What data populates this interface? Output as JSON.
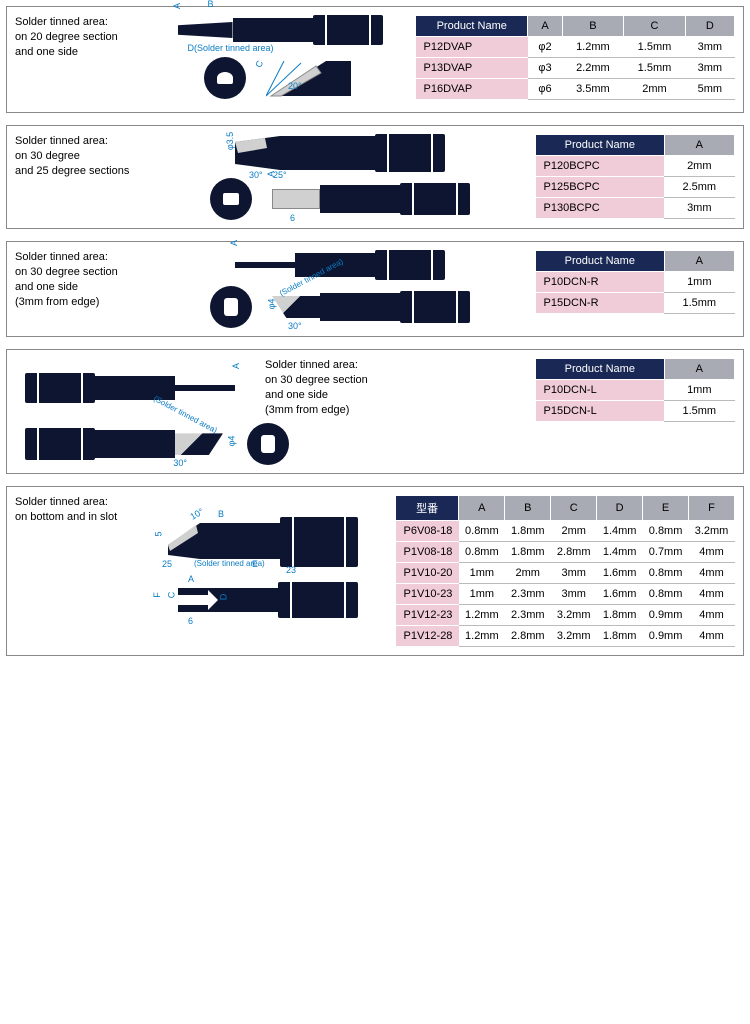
{
  "colors": {
    "header_bg": "#1a2855",
    "header_gray": "#a8abb4",
    "row_pink": "#f0cbd8",
    "dim_line": "#0a7cc4",
    "tool_fill": "#0d1530"
  },
  "panels": [
    {
      "note": "Solder tinned area:\non 20 degree section\nand one side",
      "dim_labels": [
        "A",
        "B",
        "C",
        "20°",
        "D(Solder tinned area)"
      ],
      "table": {
        "headers": [
          "Product Name",
          "A",
          "B",
          "C",
          "D"
        ],
        "rows": [
          [
            "P12DVAP",
            "φ2",
            "1.2mm",
            "1.5mm",
            "3mm"
          ],
          [
            "P13DVAP",
            "φ3",
            "2.2mm",
            "1.5mm",
            "3mm"
          ],
          [
            "P16DVAP",
            "φ6",
            "3.5mm",
            "2mm",
            "5mm"
          ]
        ]
      }
    },
    {
      "note": "Solder tinned area:\non 30 degree\nand 25 degree sections",
      "dim_labels": [
        "φ3.5",
        "30°",
        "25°",
        "A",
        "6"
      ],
      "table": {
        "headers": [
          "Product Name",
          "A"
        ],
        "rows": [
          [
            "P120BCPC",
            "2mm"
          ],
          [
            "P125BCPC",
            "2.5mm"
          ],
          [
            "P130BCPC",
            "3mm"
          ]
        ]
      }
    },
    {
      "note": "Solder tinned area:\non 30 degree section\nand one side\n(3mm from edge)",
      "dim_labels": [
        "A",
        "(Solder tinned area)",
        "φ4",
        "30°"
      ],
      "table": {
        "headers": [
          "Product Name",
          "A"
        ],
        "rows": [
          [
            "P10DCN-R",
            "1mm"
          ],
          [
            "P15DCN-R",
            "1.5mm"
          ]
        ]
      }
    },
    {
      "note_right": "Solder tinned area:\non 30 degree section\nand one side\n(3mm from edge)",
      "dim_labels": [
        "A",
        "(Solder tinned area)",
        "φ4",
        "30°"
      ],
      "table": {
        "headers": [
          "Product Name",
          "A"
        ],
        "rows": [
          [
            "P10DCN-L",
            "1mm"
          ],
          [
            "P15DCN-L",
            "1.5mm"
          ]
        ]
      }
    },
    {
      "note": "Solder tinned area:\non bottom and in slot",
      "dim_labels": [
        "10°",
        "B",
        "5",
        "25",
        "(Solder tinned area)",
        "E",
        "23",
        "F",
        "C",
        "A",
        "D",
        "6"
      ],
      "table": {
        "headers": [
          "型番",
          "A",
          "B",
          "C",
          "D",
          "E",
          "F"
        ],
        "rows": [
          [
            "P6V08-18",
            "0.8mm",
            "1.8mm",
            "2mm",
            "1.4mm",
            "0.8mm",
            "3.2mm"
          ],
          [
            "P1V08-18",
            "0.8mm",
            "1.8mm",
            "2.8mm",
            "1.4mm",
            "0.7mm",
            "4mm"
          ],
          [
            "P1V10-20",
            "1mm",
            "2mm",
            "3mm",
            "1.6mm",
            "0.8mm",
            "4mm"
          ],
          [
            "P1V10-23",
            "1mm",
            "2.3mm",
            "3mm",
            "1.6mm",
            "0.8mm",
            "4mm"
          ],
          [
            "P1V12-23",
            "1.2mm",
            "2.3mm",
            "3.2mm",
            "1.8mm",
            "0.9mm",
            "4mm"
          ],
          [
            "P1V12-28",
            "1.2mm",
            "2.8mm",
            "3.2mm",
            "1.8mm",
            "0.9mm",
            "4mm"
          ]
        ]
      }
    }
  ]
}
